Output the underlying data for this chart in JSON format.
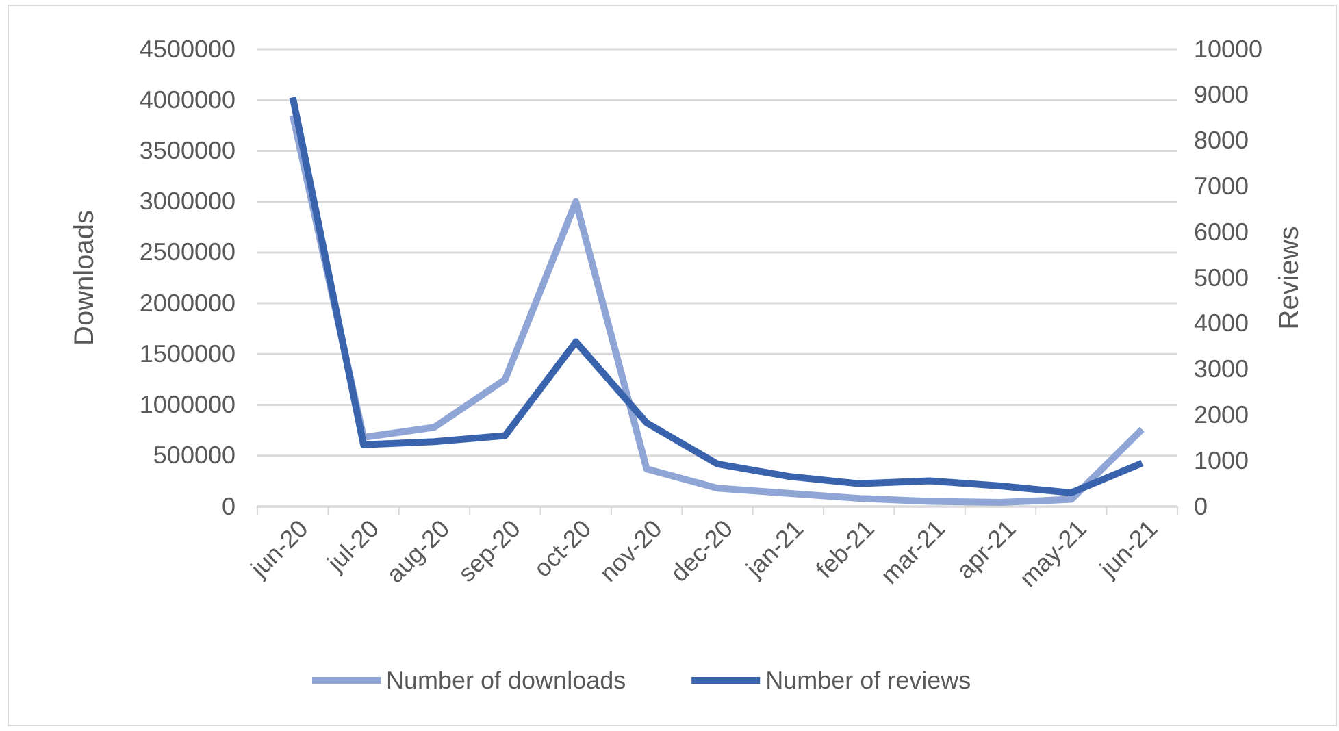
{
  "chart_data": {
    "type": "line",
    "xlabel": null,
    "ylabel": "Downloads",
    "y2label": "Reviews",
    "categories": [
      "jun-20",
      "jul-20",
      "aug-20",
      "sep-20",
      "oct-20",
      "nov-20",
      "dec-20",
      "jan-21",
      "feb-21",
      "mar-21",
      "apr-21",
      "may-21",
      "jun-21"
    ],
    "series": [
      {
        "name": "Number of downloads",
        "color": "#8fa5d6",
        "values": [
          3850000,
          680000,
          780000,
          1250000,
          3000000,
          370000,
          180000,
          130000,
          80000,
          50000,
          40000,
          70000,
          760000
        ]
      },
      {
        "name": "Number of reviews",
        "color": "#3a63ad",
        "axis": "y2",
        "values": [
          8950,
          1350,
          1420,
          1550,
          3600,
          1830,
          930,
          660,
          500,
          560,
          450,
          300,
          950
        ]
      }
    ],
    "ylim": [
      0,
      4500000
    ],
    "yticks": [
      0,
      500000,
      1000000,
      1500000,
      2000000,
      2500000,
      3000000,
      3500000,
      4000000,
      4500000
    ],
    "y2lim": [
      0,
      10000
    ],
    "y2ticks": [
      0,
      1000,
      2000,
      3000,
      4000,
      5000,
      6000,
      7000,
      8000,
      9000,
      10000
    ],
    "grid": "y",
    "legend": "bottom",
    "marker": "none",
    "line_style": "solid"
  }
}
